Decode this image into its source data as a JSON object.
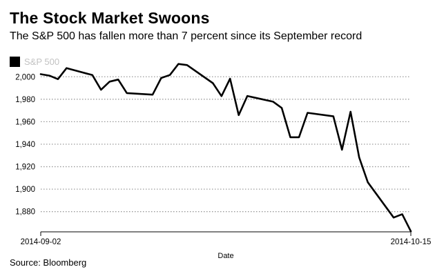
{
  "chart_data": {
    "type": "line",
    "title": "The Stock Market Swoons",
    "subtitle": "The S&P 500 has fallen more than 7 percent since its September record",
    "xlabel": "Date",
    "ylabel": "",
    "source": "Source: Bloomberg",
    "legend": {
      "position": "top-left",
      "entries": [
        "S&P 500"
      ]
    },
    "grid": true,
    "x_tick_labels": [
      "2014-09-02",
      "2014-10-15"
    ],
    "y_ticks": [
      1880,
      1900,
      1920,
      1940,
      1960,
      1980,
      2000
    ],
    "y_tick_labels": [
      "1,880",
      "1,900",
      "1,920",
      "1,940",
      "1,960",
      "1,980",
      "2,000"
    ],
    "ylim": [
      1862,
      2002
    ],
    "xlim": [
      "2014-09-02",
      "2014-10-15"
    ],
    "colors": {
      "series": "#000000",
      "grid": "#999999",
      "legend_text": "#c2c2c2"
    },
    "series": [
      {
        "name": "S&P 500",
        "x": [
          "2014-09-02",
          "2014-09-03",
          "2014-09-04",
          "2014-09-05",
          "2014-09-08",
          "2014-09-09",
          "2014-09-10",
          "2014-09-11",
          "2014-09-12",
          "2014-09-15",
          "2014-09-16",
          "2014-09-17",
          "2014-09-18",
          "2014-09-19",
          "2014-09-22",
          "2014-09-23",
          "2014-09-24",
          "2014-09-25",
          "2014-09-26",
          "2014-09-29",
          "2014-09-30",
          "2014-10-01",
          "2014-10-02",
          "2014-10-03",
          "2014-10-06",
          "2014-10-07",
          "2014-10-08",
          "2014-10-09",
          "2014-10-10",
          "2014-10-13",
          "2014-10-14",
          "2014-10-15"
        ],
        "values": [
          2002.3,
          2001.0,
          1997.9,
          2007.7,
          2001.5,
          1988.4,
          1995.7,
          1997.5,
          1985.5,
          1984.1,
          1998.9,
          2001.6,
          2011.4,
          2010.4,
          1994.3,
          1982.8,
          1998.3,
          1965.9,
          1982.9,
          1977.8,
          1972.3,
          1946.2,
          1946.2,
          1967.9,
          1964.8,
          1935.1,
          1968.9,
          1928.2,
          1906.1,
          1874.7,
          1877.7,
          1862.5
        ]
      }
    ]
  }
}
